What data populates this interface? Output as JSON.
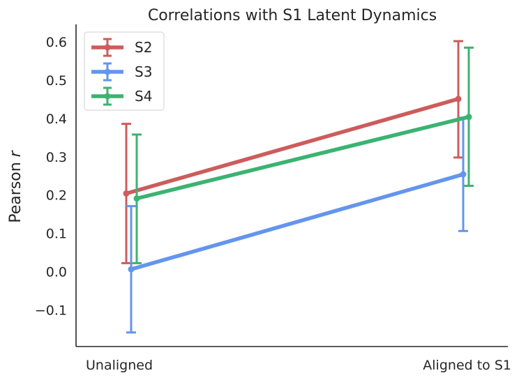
{
  "chart_data": {
    "type": "line",
    "title": "Correlations with S1 Latent Dynamics",
    "xlabel": "",
    "ylabel": "Pearson r",
    "ylabel_prefix": "Pearson ",
    "ylabel_symbol": "r",
    "categories": [
      "Unaligned",
      "Aligned to S1"
    ],
    "ylim": [
      -0.195,
      0.64
    ],
    "yticks": [
      -0.1,
      0.0,
      0.1,
      0.2,
      0.3,
      0.4,
      0.5,
      0.6
    ],
    "ytick_labels": [
      "−0.1",
      "0.0",
      "0.1",
      "0.2",
      "0.3",
      "0.4",
      "0.5",
      "0.6"
    ],
    "grid": false,
    "legend_position": "top-left",
    "series": [
      {
        "name": "S2",
        "color": "#cd5c5c",
        "values": [
          0.204,
          0.451
        ],
        "err_low": [
          0.022,
          0.298
        ],
        "err_high": [
          0.386,
          0.602
        ]
      },
      {
        "name": "S3",
        "color": "#6495ed",
        "values": [
          0.006,
          0.254
        ],
        "err_low": [
          -0.159,
          0.106
        ],
        "err_high": [
          0.171,
          0.402
        ]
      },
      {
        "name": "S4",
        "color": "#3cb371",
        "values": [
          0.191,
          0.404
        ],
        "err_low": [
          0.022,
          0.224
        ],
        "err_high": [
          0.358,
          0.585
        ]
      }
    ]
  }
}
